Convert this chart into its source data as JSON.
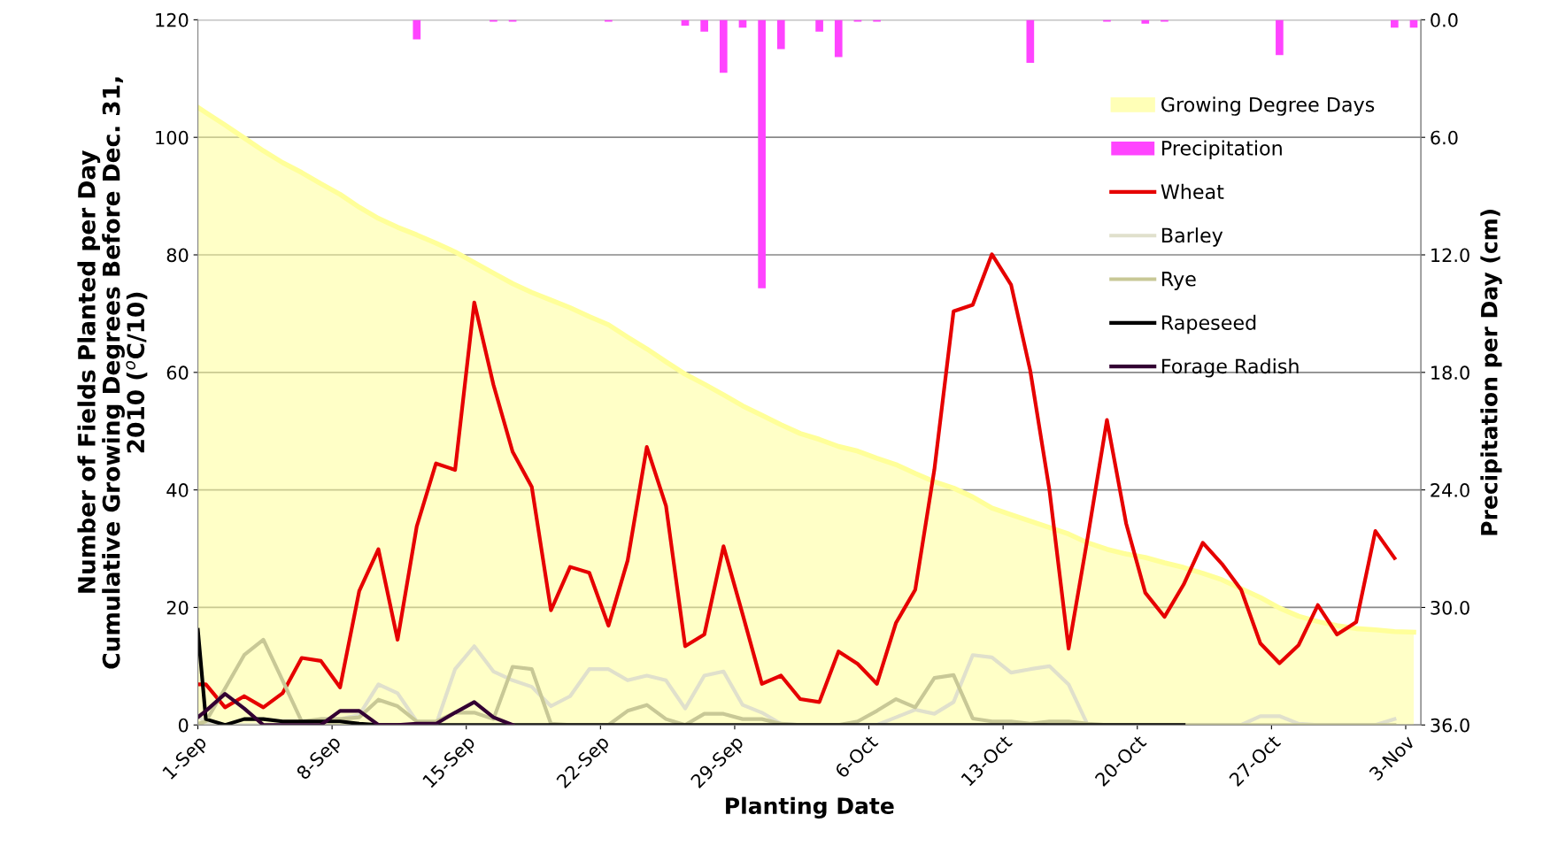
{
  "chart_data": {
    "type": "line",
    "xlabel": "Planting Date",
    "ylabel": "Number of Fields Planted per Day\nCumulative Growing Degrees Before Dec. 31,\n2010 ($^{o}$C/10)",
    "y2label": "Precipitation per Day (cm)",
    "x": [
      "2010-09-01T00:00",
      "2010-09-01T10:00",
      "2010-09-02T10:00",
      "2010-09-03T10:00",
      "2010-09-04T10:00",
      "2010-09-05T10:00",
      "2010-09-06T10:00",
      "2010-09-07T10:00",
      "2010-09-08T10:00",
      "2010-09-09T10:00",
      "2010-09-10T10:00",
      "2010-09-11T10:00",
      "2010-09-12T10:00",
      "2010-09-13T10:00",
      "2010-09-14T10:00",
      "2010-09-15T10:00",
      "2010-09-16T10:00",
      "2010-09-17T10:00",
      "2010-09-18T10:00",
      "2010-09-19T10:00",
      "2010-09-20T10:00",
      "2010-09-21T10:00",
      "2010-09-22T10:00",
      "2010-09-23T10:00",
      "2010-09-24T10:00",
      "2010-09-25T10:00",
      "2010-09-26T10:00",
      "2010-09-27T10:00",
      "2010-09-28T10:00",
      "2010-09-29T10:00",
      "2010-09-30T10:00",
      "2010-10-01T10:00",
      "2010-10-02T10:00",
      "2010-10-03T10:00",
      "2010-10-04T10:00",
      "2010-10-05T10:00",
      "2010-10-06T10:00",
      "2010-10-07T10:00",
      "2010-10-08T10:00",
      "2010-10-09T10:00",
      "2010-10-10T10:00",
      "2010-10-11T10:00",
      "2010-10-12T10:00",
      "2010-10-13T10:00",
      "2010-10-14T10:00",
      "2010-10-15T10:00",
      "2010-10-16T10:00",
      "2010-10-17T10:00",
      "2010-10-18T10:00",
      "2010-10-19T10:00",
      "2010-10-20T10:00",
      "2010-10-21T10:00",
      "2010-10-22T10:00",
      "2010-10-23T10:00",
      "2010-10-24T10:00",
      "2010-10-25T10:00",
      "2010-10-26T10:00",
      "2010-10-27T10:00",
      "2010-10-28T10:00",
      "2010-10-29T10:00",
      "2010-10-30T10:00",
      "2010-10-31T10:00",
      "2010-11-01T10:00",
      "2010-11-02T10:00"
    ],
    "xlim": [
      "2010-09-01T00:00",
      "2010-11-03T19:00"
    ],
    "xticks": [
      {
        "value": "2010-09-01",
        "label": "1-Sep"
      },
      {
        "value": "2010-09-08",
        "label": "8-Sep"
      },
      {
        "value": "2010-09-15",
        "label": "15-Sep"
      },
      {
        "value": "2010-09-22",
        "label": "22-Sep"
      },
      {
        "value": "2010-09-29",
        "label": "29-Sep"
      },
      {
        "value": "2010-10-06",
        "label": "6-Oct"
      },
      {
        "value": "2010-10-13",
        "label": "13-Oct"
      },
      {
        "value": "2010-10-20",
        "label": "20-Oct"
      },
      {
        "value": "2010-10-27",
        "label": "27-Oct"
      },
      {
        "value": "2010-11-03",
        "label": "3-Nov"
      }
    ],
    "ylim": [
      0,
      120
    ],
    "yticks": [
      0,
      20,
      40,
      60,
      80,
      100,
      120
    ],
    "y2lim": [
      36,
      0
    ],
    "y2ticks": [
      {
        "value": 0,
        "label": "0.0"
      },
      {
        "value": 6,
        "label": "6.0"
      },
      {
        "value": 12,
        "label": "12.0"
      },
      {
        "value": 18,
        "label": "18.0"
      },
      {
        "value": 24,
        "label": "24.0"
      },
      {
        "value": 30,
        "label": "30.0"
      },
      {
        "value": 36,
        "label": "36.0"
      }
    ],
    "grid": "y",
    "legend": "top right",
    "series": [
      {
        "name": "Growing Degree Days",
        "type": "area",
        "color": "#ffff99",
        "x": [
          "2010-09-01T00:00",
          "2010-09-01T10:00",
          "2010-09-02T10:00",
          "2010-09-03T10:00",
          "2010-09-04T10:00",
          "2010-09-05T10:00",
          "2010-09-06T10:00",
          "2010-09-07T10:00",
          "2010-09-08T10:00",
          "2010-09-09T10:00",
          "2010-09-10T10:00",
          "2010-09-11T10:00",
          "2010-09-12T10:00",
          "2010-09-13T10:00",
          "2010-09-14T10:00",
          "2010-09-15T10:00",
          "2010-09-16T10:00",
          "2010-09-17T10:00",
          "2010-09-18T10:00",
          "2010-09-19T10:00",
          "2010-09-20T10:00",
          "2010-09-21T10:00",
          "2010-09-22T10:00",
          "2010-09-23T10:00",
          "2010-09-24T10:00",
          "2010-09-25T10:00",
          "2010-09-26T10:00",
          "2010-09-27T10:00",
          "2010-09-28T10:00",
          "2010-09-29T10:00",
          "2010-09-30T10:00",
          "2010-10-01T10:00",
          "2010-10-02T10:00",
          "2010-10-03T10:00",
          "2010-10-04T10:00",
          "2010-10-05T10:00",
          "2010-10-06T10:00",
          "2010-10-07T10:00",
          "2010-10-08T10:00",
          "2010-10-09T10:00",
          "2010-10-10T10:00",
          "2010-10-11T10:00",
          "2010-10-12T10:00",
          "2010-10-13T10:00",
          "2010-10-14T10:00",
          "2010-10-15T10:00",
          "2010-10-16T10:00",
          "2010-10-17T10:00",
          "2010-10-18T10:00",
          "2010-10-19T10:00",
          "2010-10-20T10:00",
          "2010-10-21T10:00",
          "2010-10-22T10:00",
          "2010-10-23T10:00",
          "2010-10-24T10:00",
          "2010-10-25T10:00",
          "2010-10-26T10:00",
          "2010-10-27T10:00",
          "2010-10-28T10:00",
          "2010-10-29T10:00",
          "2010-10-30T10:00",
          "2010-10-31T10:00",
          "2010-11-01T10:00",
          "2010-11-02T10:00",
          "2010-11-03T10:00"
        ],
        "values": [
          105.1,
          104.2,
          102.1,
          99.9,
          97.7,
          95.7,
          94.0,
          92.1,
          90.3,
          88.1,
          86.2,
          84.7,
          83.4,
          82.0,
          80.5,
          78.7,
          76.9,
          75.1,
          73.6,
          72.3,
          71.0,
          69.5,
          68.1,
          66.0,
          64.0,
          61.8,
          59.7,
          58.0,
          56.2,
          54.3,
          52.7,
          51.1,
          49.6,
          48.6,
          47.4,
          46.6,
          45.4,
          44.3,
          42.8,
          41.4,
          40.3,
          38.8,
          36.9,
          35.8,
          34.7,
          33.6,
          32.5,
          31.0,
          29.9,
          29.1,
          28.5,
          27.6,
          26.8,
          25.8,
          24.7,
          23.2,
          21.7,
          19.9,
          18.5,
          17.6,
          16.9,
          16.4,
          16.2,
          15.9,
          15.8
        ]
      },
      {
        "name": "Precipitation",
        "type": "bar",
        "axis": "y2",
        "color": "#ff44ff",
        "x": [
          "2010-09-12T10:00",
          "2010-09-16T10:00",
          "2010-09-17T10:00",
          "2010-09-22T10:00",
          "2010-09-26T10:00",
          "2010-09-27T10:00",
          "2010-09-28T10:00",
          "2010-09-29T10:00",
          "2010-09-30T10:00",
          "2010-10-01T10:00",
          "2010-10-03T10:00",
          "2010-10-04T10:00",
          "2010-10-05T10:00",
          "2010-10-06T10:00",
          "2010-10-14T10:00",
          "2010-10-18T10:00",
          "2010-10-20T10:00",
          "2010-10-21T10:00",
          "2010-10-27T10:00",
          "2010-11-02T10:00",
          "2010-11-03T10:00"
        ],
        "values": [
          1.0,
          0.1,
          0.1,
          0.1,
          0.3,
          0.6,
          2.7,
          0.4,
          13.7,
          1.5,
          0.6,
          1.9,
          0.1,
          0.1,
          2.2,
          0.1,
          0.2,
          0.1,
          1.8,
          0.4,
          0.4
        ]
      },
      {
        "name": "Wheat",
        "color": "#e60000",
        "values": [
          6.9,
          6.9,
          3.0,
          4.9,
          3.0,
          5.4,
          11.4,
          10.9,
          6.4,
          22.8,
          29.9,
          14.5,
          33.8,
          44.5,
          43.4,
          71.9,
          57.9,
          46.5,
          40.5,
          19.5,
          26.9,
          25.9,
          16.9,
          28.0,
          47.3,
          37.3,
          13.4,
          15.4,
          30.4,
          18.8,
          7.0,
          8.4,
          4.4,
          3.9,
          12.5,
          10.4,
          7.0,
          17.4,
          23.0,
          43.5,
          70.4,
          71.5,
          80.1,
          74.9,
          60.3,
          40,
          13.0,
          32,
          51.9,
          34.3,
          22.5,
          18.4,
          23.9,
          31.0,
          27.4,
          23.0,
          13.9,
          10.5,
          13.6,
          20.4,
          15.4,
          17.5,
          33.0,
          28.4
        ]
      },
      {
        "name": "Barley",
        "color": "#e0e0cc",
        "values": [
          1.7,
          0.2,
          0,
          0,
          0,
          0,
          0,
          1.0,
          1.0,
          1.7,
          6.9,
          5.4,
          0.6,
          0,
          9.5,
          13.4,
          9.1,
          7.6,
          6.5,
          3.2,
          4.9,
          9.5,
          9.5,
          7.6,
          8.4,
          7.6,
          2.8,
          8.4,
          9.1,
          3.4,
          2.1,
          0.2,
          0,
          0,
          0,
          0,
          0,
          1.3,
          2.6,
          1.9,
          3.9,
          11.9,
          11.5,
          8.9,
          9.5,
          10.0,
          6.9,
          0,
          0,
          0,
          0,
          0,
          0,
          0,
          0,
          0,
          1.5,
          1.5,
          0.2,
          0,
          0,
          0,
          0,
          1.0
        ]
      },
      {
        "name": "Rye",
        "color": "#c8c896",
        "values": [
          0.2,
          0.6,
          6.2,
          11.9,
          14.5,
          7.6,
          0.6,
          1.0,
          1.0,
          1.3,
          4.3,
          3.2,
          0.6,
          0.6,
          2.1,
          2.1,
          1.0,
          9.9,
          9.5,
          0.2,
          0,
          0,
          0,
          2.4,
          3.4,
          1.0,
          0,
          1.9,
          1.9,
          1.0,
          1.0,
          0.2,
          0,
          0,
          0,
          0.6,
          2.4,
          4.4,
          3.0,
          8.0,
          8.5,
          1.1,
          0.6,
          0.6,
          0.2,
          0.6,
          0.6,
          0.2,
          0,
          0,
          0,
          0,
          0,
          0,
          0,
          0,
          0,
          0,
          0,
          0,
          0,
          0,
          0,
          0
        ]
      },
      {
        "name": "Rapeseed",
        "color": "#000000",
        "values": [
          16.2,
          1.0,
          0,
          1.0,
          1.0,
          0.6,
          0.6,
          0.6,
          0.6,
          0.2,
          0,
          0,
          0,
          0,
          0,
          0,
          0,
          0,
          0,
          0,
          0,
          0,
          0,
          0,
          0,
          0,
          0,
          0,
          0,
          0,
          0,
          0,
          0,
          0,
          0,
          0,
          0,
          0,
          0,
          0,
          0,
          0,
          0,
          0,
          0,
          0,
          0,
          0,
          0,
          0,
          0,
          0,
          0,
          null,
          null,
          null,
          null,
          null,
          null,
          null,
          null,
          null,
          null,
          null
        ]
      },
      {
        "name": "Forage Radish",
        "color": "#330033",
        "values": [
          1.3,
          2.4,
          5.3,
          2.8,
          0,
          0,
          0,
          0,
          2.4,
          2.4,
          0,
          0,
          0.2,
          0.2,
          2.1,
          3.9,
          1.3,
          0,
          null,
          null,
          null,
          null,
          null,
          null,
          null,
          null,
          null,
          null,
          null,
          null,
          null,
          null,
          null,
          null,
          null,
          null,
          null,
          null,
          null,
          null,
          null,
          null,
          null,
          null,
          null,
          null,
          null,
          null,
          null,
          null,
          null,
          null,
          null,
          null,
          null,
          null,
          null,
          null,
          null,
          null,
          null,
          null,
          null,
          null
        ]
      }
    ]
  }
}
